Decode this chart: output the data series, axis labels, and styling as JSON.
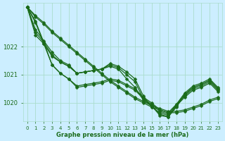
{
  "bg_color": "#cceeff",
  "grid_color": "#aaddcc",
  "line_color": "#1a6b1a",
  "xlabel": "Graphe pression niveau de la mer (hPa)",
  "hours": [
    0,
    1,
    2,
    3,
    4,
    5,
    6,
    7,
    8,
    9,
    10,
    11,
    12,
    13,
    14,
    15,
    16,
    17,
    18,
    19,
    20,
    21,
    22,
    23
  ],
  "series": [
    [
      1023.4,
      1022.6,
      1022.2,
      1021.8,
      1021.5,
      1021.35,
      1021.05,
      1021.1,
      1021.15,
      1021.2,
      1021.4,
      1021.3,
      1021.1,
      1020.85,
      1020.25,
      1019.85,
      1019.65,
      1019.55,
      1019.95,
      1020.35,
      1020.6,
      1020.7,
      1020.85,
      1020.55
    ],
    [
      1023.4,
      1022.5,
      1022.15,
      1021.7,
      1021.45,
      1021.3,
      1021.05,
      1021.1,
      1021.15,
      1021.2,
      1021.35,
      1021.25,
      1021.0,
      1020.75,
      1020.15,
      1019.9,
      1019.6,
      1019.5,
      1019.9,
      1020.3,
      1020.55,
      1020.65,
      1020.8,
      1020.5
    ],
    [
      1023.4,
      1022.4,
      1022.1,
      1021.65,
      1021.45,
      1021.3,
      1021.05,
      1021.1,
      1021.15,
      1021.2,
      1021.3,
      1021.2,
      1020.85,
      1020.55,
      1020.1,
      1019.9,
      1019.55,
      1019.5,
      1019.85,
      1020.3,
      1020.55,
      1020.65,
      1020.8,
      1020.5
    ],
    [
      1023.4,
      1022.85,
      1022.1,
      1021.35,
      1021.05,
      1020.85,
      1020.6,
      1020.65,
      1020.7,
      1020.75,
      1020.85,
      1020.8,
      1020.65,
      1020.5,
      1020.2,
      1020.0,
      1019.75,
      1019.65,
      1019.95,
      1020.25,
      1020.5,
      1020.6,
      1020.75,
      1020.45
    ],
    [
      1023.4,
      1022.9,
      1022.15,
      1021.35,
      1021.05,
      1020.85,
      1020.55,
      1020.6,
      1020.65,
      1020.7,
      1020.8,
      1020.75,
      1020.6,
      1020.45,
      1020.15,
      1019.95,
      1019.7,
      1019.6,
      1019.9,
      1020.2,
      1020.45,
      1020.55,
      1020.7,
      1020.4
    ]
  ],
  "straight_series": [
    [
      1023.4,
      1023.1,
      1022.85,
      1022.55,
      1022.3,
      1022.05,
      1021.8,
      1021.55,
      1021.3,
      1021.05,
      1020.8,
      1020.6,
      1020.4,
      1020.2,
      1020.05,
      1019.9,
      1019.8,
      1019.7,
      1019.7,
      1019.75,
      1019.85,
      1019.95,
      1020.1,
      1020.2
    ],
    [
      1023.4,
      1023.05,
      1022.8,
      1022.5,
      1022.25,
      1022.0,
      1021.75,
      1021.5,
      1021.25,
      1021.0,
      1020.75,
      1020.55,
      1020.35,
      1020.15,
      1020.0,
      1019.85,
      1019.75,
      1019.65,
      1019.65,
      1019.7,
      1019.8,
      1019.9,
      1020.05,
      1020.15
    ]
  ],
  "ylim_min": 1019.35,
  "ylim_max": 1023.55,
  "yticks": [
    1020,
    1021,
    1022
  ],
  "marker_size": 2.5,
  "line_width": 0.9
}
